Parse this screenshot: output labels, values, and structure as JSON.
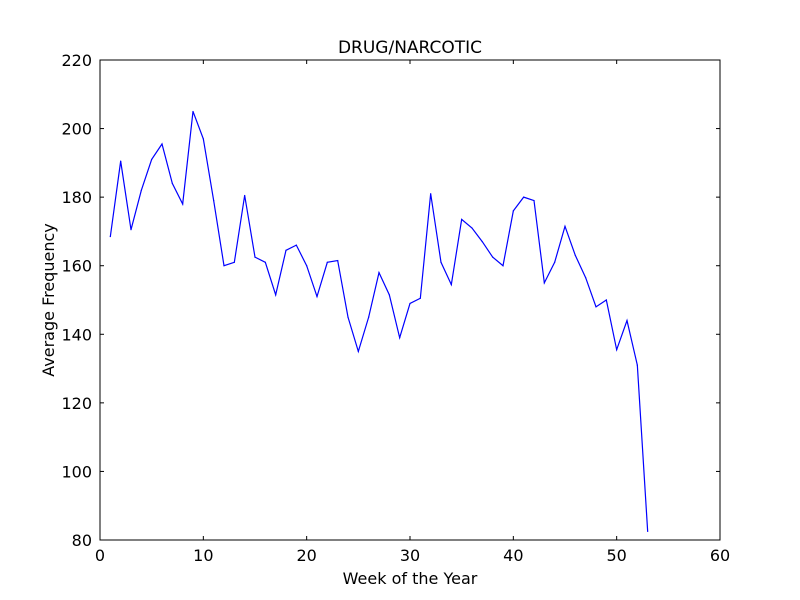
{
  "chart_data": {
    "type": "line",
    "title": "DRUG/NARCOTIC",
    "xlabel": "Week of the Year",
    "ylabel": "Average Frequency",
    "xlim": [
      0,
      60
    ],
    "ylim": [
      80,
      220
    ],
    "xticks": [
      0,
      10,
      20,
      30,
      40,
      50,
      60
    ],
    "yticks": [
      80,
      100,
      120,
      140,
      160,
      180,
      200,
      220
    ],
    "grid": false,
    "series": [
      {
        "color": "#0000ff",
        "x": [
          1,
          2,
          3,
          4,
          5,
          6,
          7,
          8,
          9,
          10,
          11,
          12,
          13,
          14,
          15,
          16,
          17,
          18,
          19,
          20,
          21,
          22,
          23,
          24,
          25,
          26,
          27,
          28,
          29,
          30,
          31,
          32,
          33,
          34,
          35,
          36,
          37,
          38,
          39,
          40,
          41,
          42,
          43,
          44,
          45,
          46,
          47,
          48,
          49,
          50,
          51,
          52,
          53
        ],
        "values": [
          168.5,
          190.5,
          170.5,
          182,
          191,
          195.5,
          184,
          178,
          205,
          197,
          179,
          160,
          161,
          180.5,
          162.5,
          161,
          151.5,
          164.5,
          166,
          160,
          151,
          161,
          161.5,
          145,
          135,
          145,
          158,
          151.5,
          139,
          149,
          150.5,
          181,
          161,
          154.5,
          173.5,
          171,
          167,
          162.5,
          160,
          176,
          180,
          179,
          155,
          161,
          171.5,
          163,
          156.5,
          148,
          150,
          135.5,
          144,
          131,
          82.5
        ]
      }
    ]
  }
}
